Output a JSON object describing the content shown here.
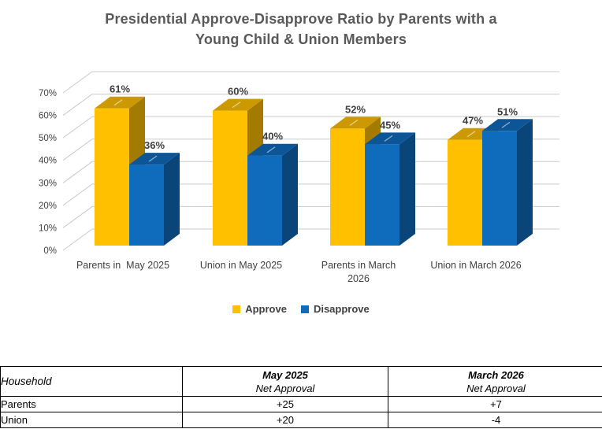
{
  "page": {
    "background": "#FFFFFF"
  },
  "colors": {
    "approve": "#FFC000",
    "disapprove": "#0F6CBD",
    "title_text": "#595959",
    "data_label_text": "#3F3F3F",
    "axis_text": "#404040",
    "gridline": "#C9C9C9",
    "table_border": "#000000"
  },
  "chart_data": {
    "type": "bar",
    "subtype": "3d-clustered-column",
    "title": "Presidential Approve-Disapprove Ratio by Parents with a Young Child & Union Members",
    "title_lines": [
      "Presidential Approve-Disapprove Ratio by Parents with a",
      "Young Child & Union Members"
    ],
    "categories": [
      "Parents in  May 2025",
      "Union in May 2025",
      "Parents in March 2026",
      "Union in March 2026"
    ],
    "category_display_lines": [
      [
        "Parents in  May 2025"
      ],
      [
        "Union in May 2025"
      ],
      [
        "Parents in March",
        "2026"
      ],
      [
        "Union in March 2026"
      ]
    ],
    "series": [
      {
        "name": "Approve",
        "color": "#FFC000",
        "values": [
          61,
          60,
          52,
          47
        ],
        "data_labels": [
          "61%",
          "60%",
          "52%",
          "47%"
        ]
      },
      {
        "name": "Disapprove",
        "color": "#0F6CBD",
        "values": [
          36,
          40,
          45,
          51
        ],
        "data_labels": [
          "36%",
          "40%",
          "45%",
          "51%"
        ]
      }
    ],
    "ylim": [
      0,
      70
    ],
    "ytick_step": 10,
    "yticks": [
      "0%",
      "10%",
      "20%",
      "30%",
      "40%",
      "50%",
      "60%",
      "70%"
    ],
    "grid": true,
    "legend_position": "bottom"
  },
  "table": {
    "columns": [
      {
        "header": "Household"
      },
      {
        "header_line1": "May 2025",
        "header_line2": "Net Approval"
      },
      {
        "header_line1": "March 2026",
        "header_line2": "Net Approval"
      }
    ],
    "rows": [
      {
        "household": "Parents",
        "may_2025": "+25",
        "march_2026": "+7"
      },
      {
        "household": "Union",
        "may_2025": "+20",
        "march_2026": "-4"
      }
    ]
  }
}
